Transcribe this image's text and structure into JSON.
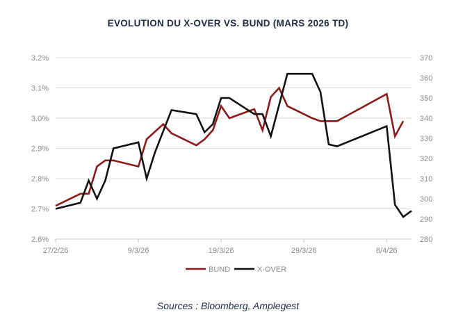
{
  "chart_data": {
    "type": "line",
    "title": "EVOLUTION DU X-OVER VS. BUND (MARS 2026 TD)",
    "x_tick_labels": [
      "27/2/26",
      "9/3/26",
      "19/3/26",
      "29/3/26",
      "8/4/26"
    ],
    "x_range_days": [
      0,
      43
    ],
    "x_tick_days": [
      0,
      10,
      20,
      30,
      40
    ],
    "y_left": {
      "range": [
        2.6,
        3.2
      ],
      "ticks": [
        2.6,
        2.7,
        2.8,
        2.9,
        3.0,
        3.1,
        3.2
      ],
      "tick_labels": [
        "2.6%",
        "2.7%",
        "2.8%",
        "2.9%",
        "3.0%",
        "3.1%",
        "3.2%"
      ]
    },
    "y_right": {
      "range": [
        280,
        370
      ],
      "ticks": [
        280,
        290,
        300,
        310,
        320,
        330,
        340,
        350,
        360,
        370
      ],
      "tick_labels": [
        "280",
        "290",
        "300",
        "310",
        "320",
        "330",
        "340",
        "350",
        "360",
        "370"
      ]
    },
    "grid": "horizontal",
    "legend_position": "bottom",
    "series": [
      {
        "name": "BUND",
        "axis": "left",
        "color": "#8b1a1a",
        "points": [
          [
            0,
            2.71
          ],
          [
            3,
            2.75
          ],
          [
            4,
            2.75
          ],
          [
            5,
            2.84
          ],
          [
            6,
            2.86
          ],
          [
            7,
            2.86
          ],
          [
            10,
            2.84
          ],
          [
            11,
            2.93
          ],
          [
            13,
            2.98
          ],
          [
            14,
            2.95
          ],
          [
            17,
            2.91
          ],
          [
            18,
            2.93
          ],
          [
            19,
            2.96
          ],
          [
            20,
            3.04
          ],
          [
            21,
            3.0
          ],
          [
            24,
            3.03
          ],
          [
            25,
            2.96
          ],
          [
            26,
            3.07
          ],
          [
            27,
            3.1
          ],
          [
            28,
            3.04
          ],
          [
            31,
            3.0
          ],
          [
            32,
            2.99
          ],
          [
            33,
            2.99
          ],
          [
            34,
            2.99
          ],
          [
            40,
            3.08
          ],
          [
            41,
            2.94
          ],
          [
            42,
            2.99
          ]
        ]
      },
      {
        "name": "X-OVER",
        "axis": "right",
        "color": "#111111",
        "points": [
          [
            0,
            295
          ],
          [
            3,
            298
          ],
          [
            4,
            309
          ],
          [
            5,
            300
          ],
          [
            6,
            309
          ],
          [
            7,
            325
          ],
          [
            10,
            328
          ],
          [
            11,
            310
          ],
          [
            12,
            323
          ],
          [
            14,
            344
          ],
          [
            17,
            342
          ],
          [
            18,
            333
          ],
          [
            19,
            337
          ],
          [
            20,
            350
          ],
          [
            21,
            350
          ],
          [
            24,
            342
          ],
          [
            25,
            342
          ],
          [
            26,
            331
          ],
          [
            28,
            362
          ],
          [
            31,
            362
          ],
          [
            32,
            353
          ],
          [
            33,
            327
          ],
          [
            34,
            326
          ],
          [
            40,
            336
          ],
          [
            41,
            297
          ],
          [
            42,
            291
          ],
          [
            43,
            294
          ]
        ]
      }
    ]
  },
  "source": "Sources : Bloomberg, Amplegest"
}
